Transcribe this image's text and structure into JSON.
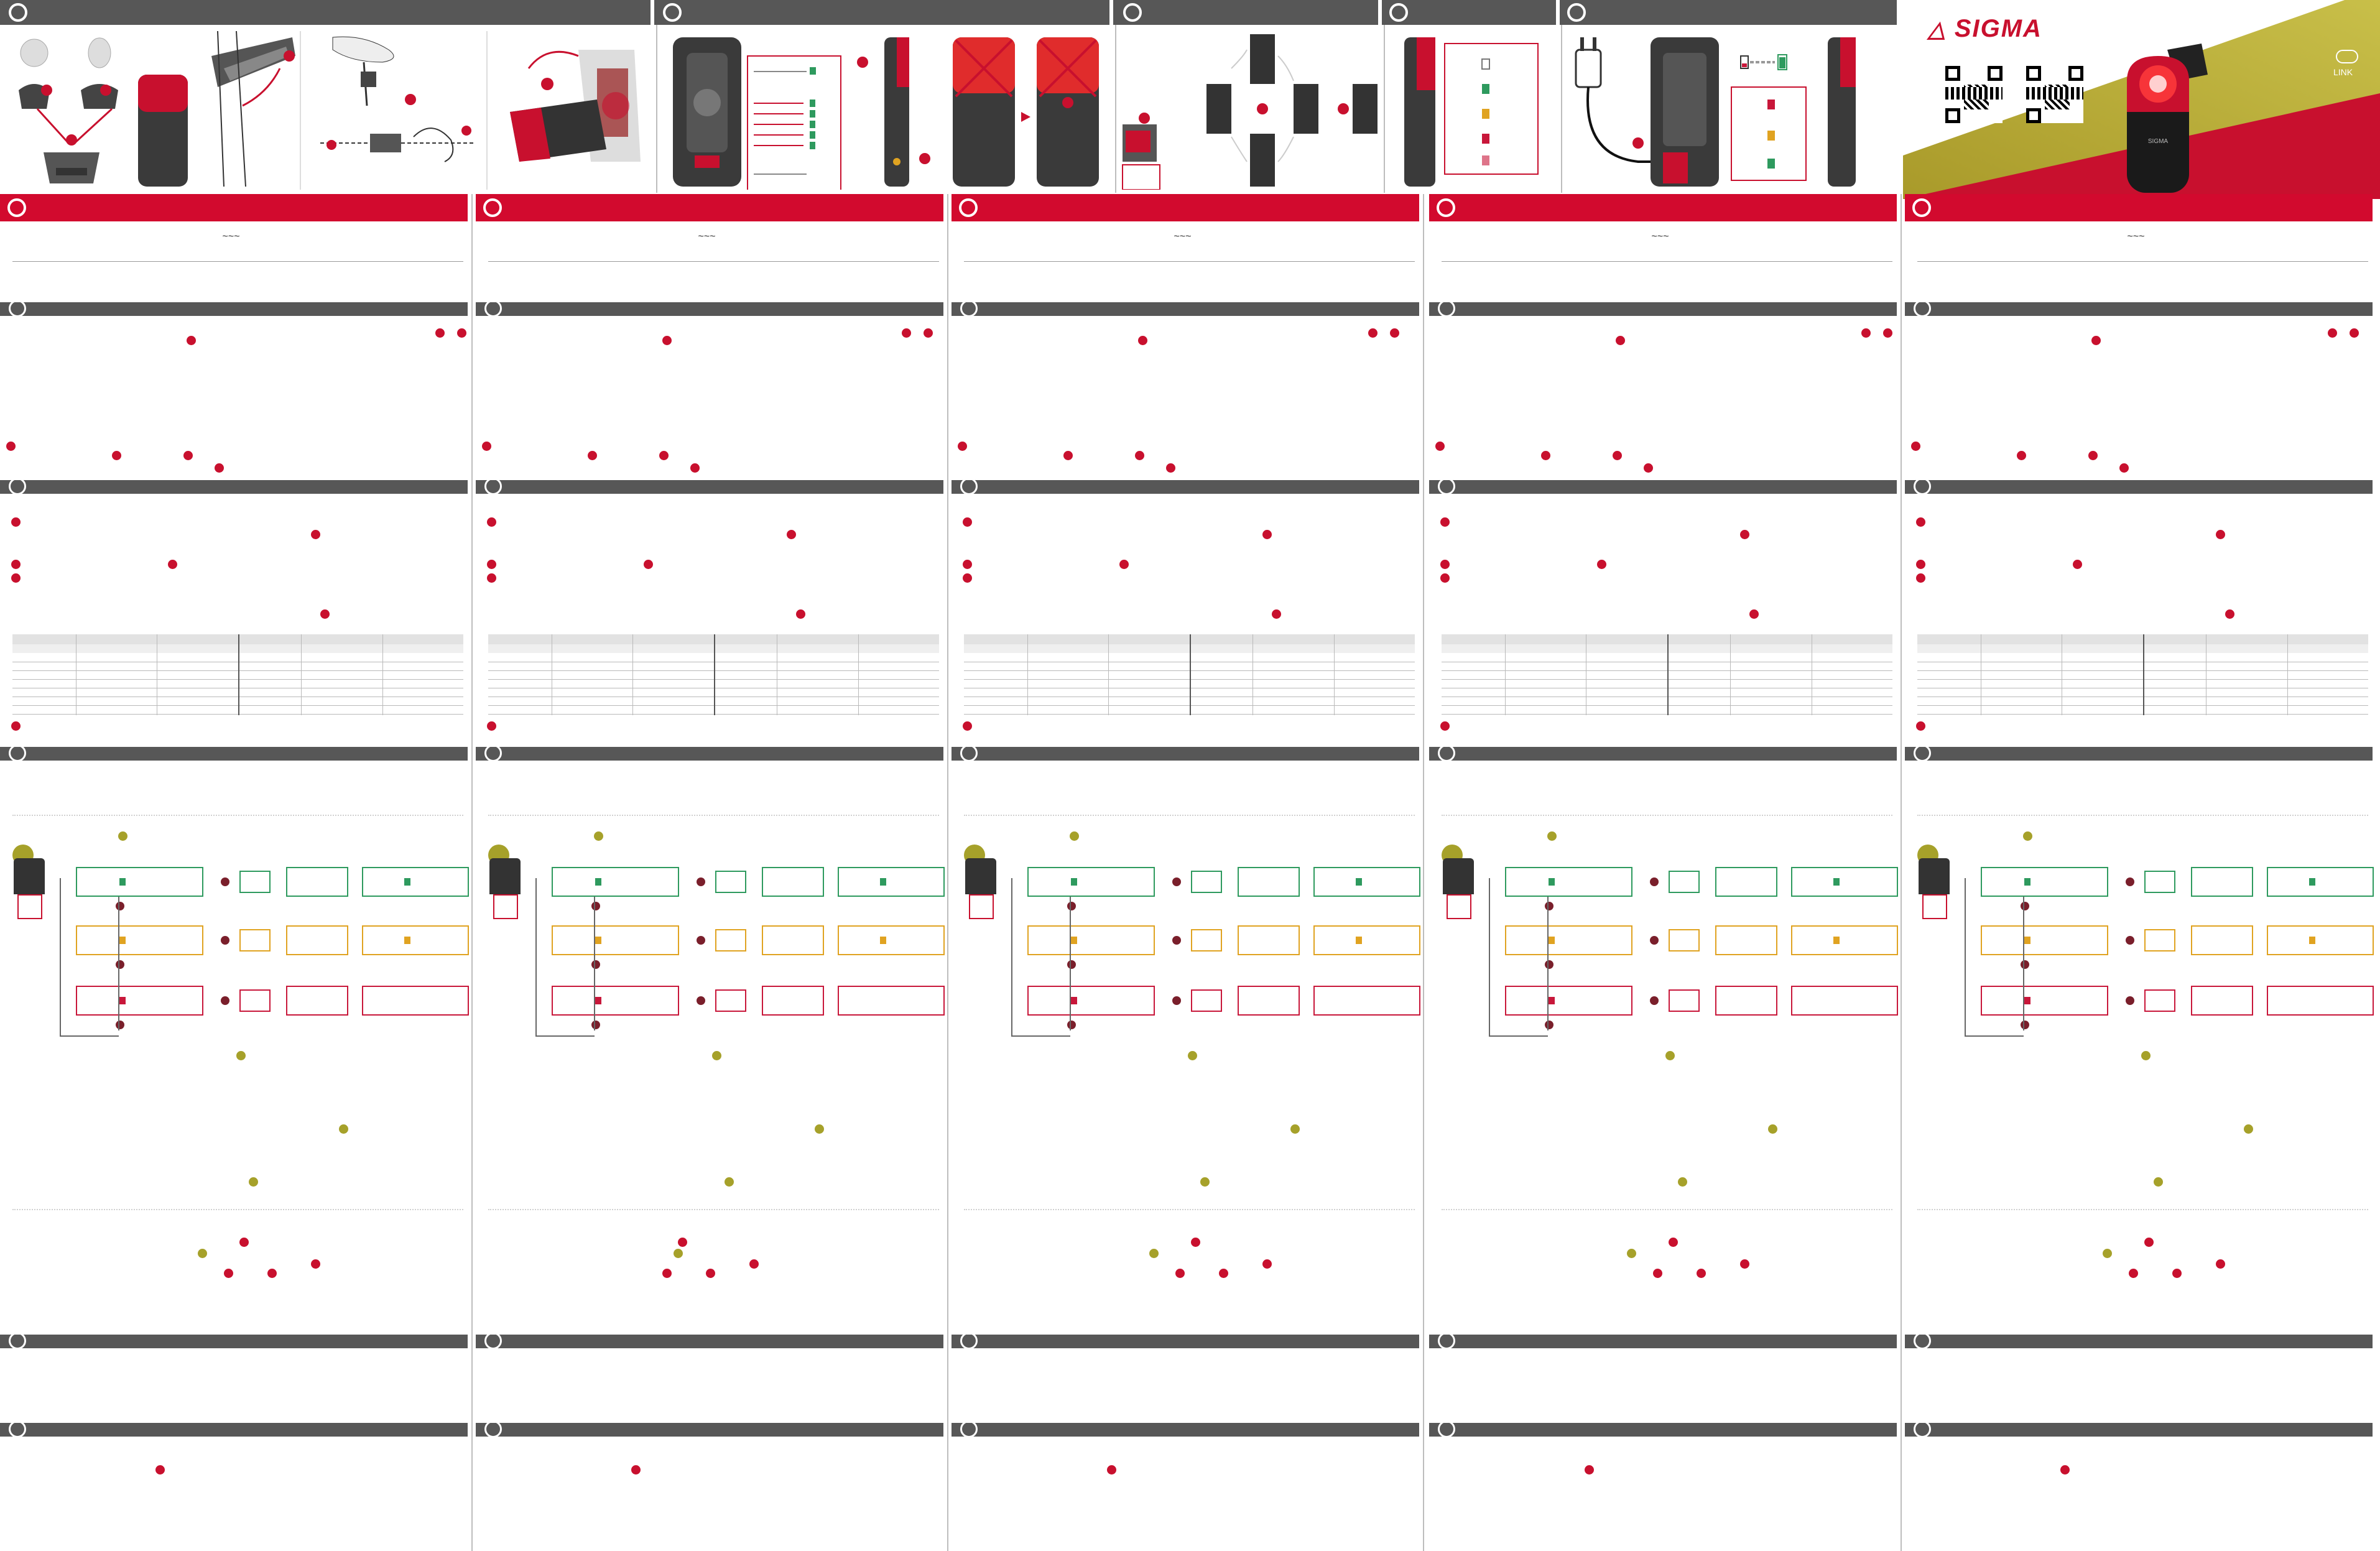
{
  "brand": {
    "name": "SIGMA",
    "link_label": "LINK",
    "product_label": "SIGMA"
  },
  "colors": {
    "accent_red": "#d20a2e",
    "dark_bar": "#575757",
    "status_green": "#2e9a5e",
    "status_yellow": "#e0a321",
    "status_red": "#c8173a",
    "olive_marker": "#a6a12a"
  },
  "top_illustrations": [
    {
      "name": "mount-assembly"
    },
    {
      "name": "seatpost-mount"
    },
    {
      "name": "clip-mount"
    },
    {
      "name": "button-modes"
    },
    {
      "name": "light-on-off"
    },
    {
      "name": "orientation"
    },
    {
      "name": "battery-status"
    },
    {
      "name": "charging"
    }
  ],
  "status_legend": {
    "charging_states": [
      "white",
      "green",
      "yellow",
      "red",
      "red-blink"
    ]
  },
  "wave_symbol": "~~~"
}
